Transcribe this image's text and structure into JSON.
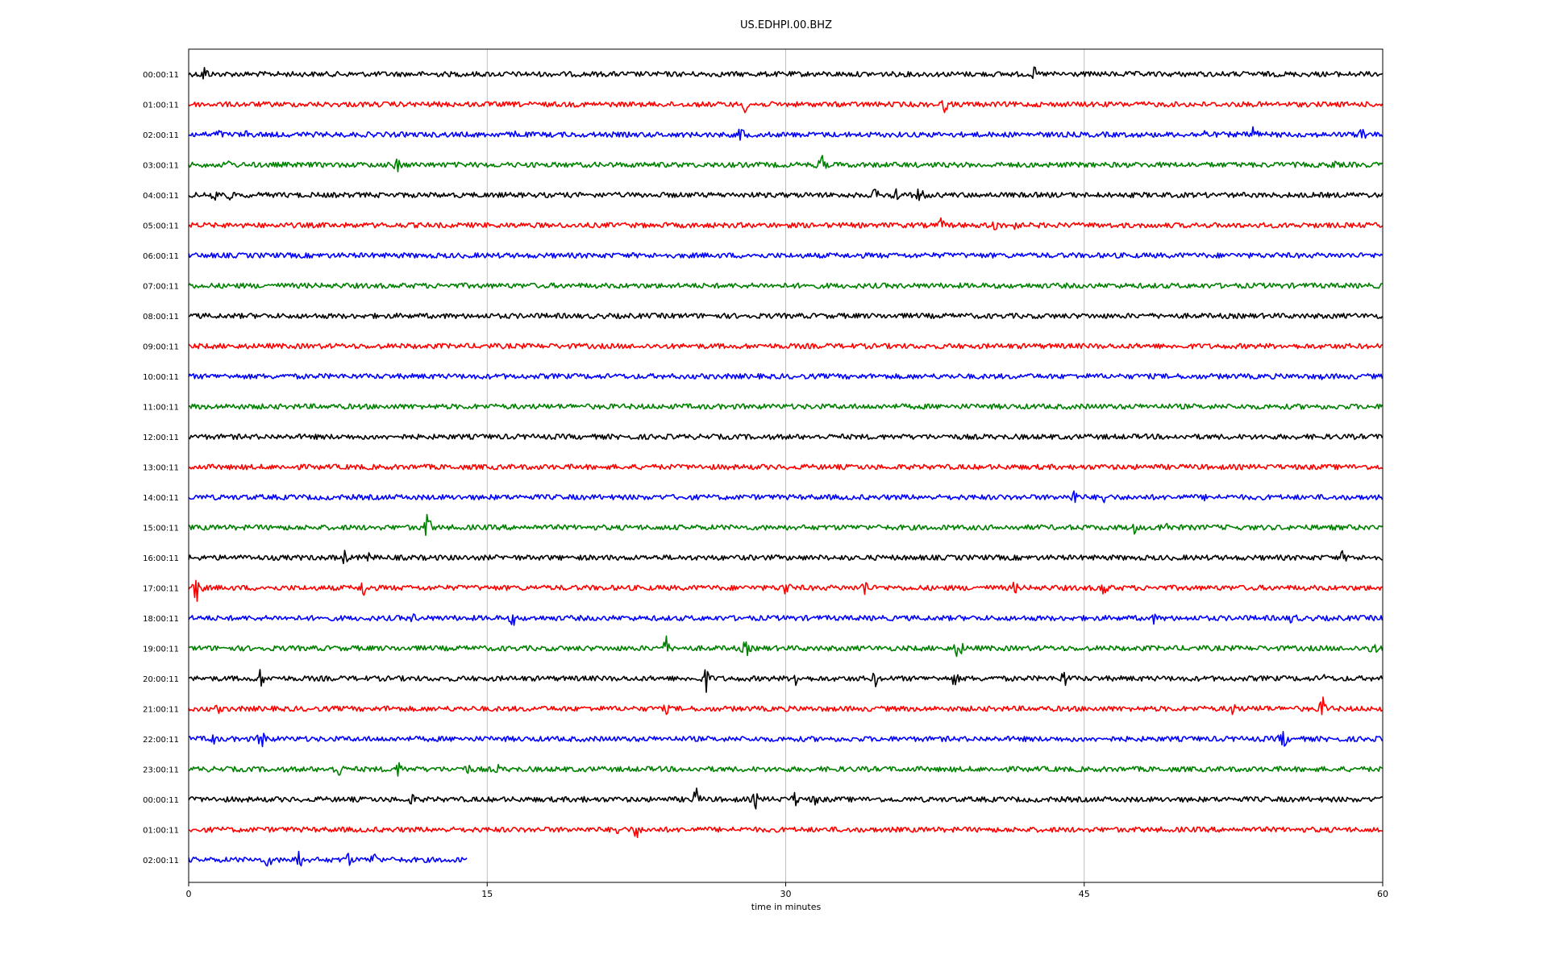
{
  "chart_data": {
    "type": "line",
    "title": "US.EDHPI.00.BHZ",
    "xlabel": "time in minutes",
    "xlim": [
      0,
      60
    ],
    "x_ticks": [
      0,
      15,
      30,
      45,
      60
    ],
    "x_tick_labels": [
      "0",
      "15",
      "30",
      "45",
      "60"
    ],
    "grid": "vertical lines at 15, 30, 45 minutes",
    "color_cycle": [
      "#000000",
      "#ff0000",
      "#0000ff",
      "#008000"
    ],
    "rows": [
      {
        "label": "00:00:11",
        "color": "#000000",
        "end": 60,
        "events": [
          [
            0.8,
            14
          ],
          [
            42.5,
            10
          ]
        ]
      },
      {
        "label": "01:00:11",
        "color": "#ff0000",
        "end": 60,
        "events": [
          [
            28.0,
            13
          ],
          [
            38.0,
            12
          ]
        ]
      },
      {
        "label": "02:00:11",
        "color": "#0000ff",
        "end": 60,
        "events": [
          [
            1.5,
            10
          ],
          [
            3.0,
            10
          ],
          [
            16.5,
            8
          ],
          [
            27.8,
            14
          ],
          [
            51.0,
            10
          ],
          [
            53.5,
            16
          ],
          [
            59.0,
            14
          ]
        ]
      },
      {
        "label": "03:00:11",
        "color": "#008000",
        "end": 60,
        "events": [
          [
            2.0,
            8
          ],
          [
            10.5,
            12
          ],
          [
            31.8,
            16
          ],
          [
            57.5,
            8
          ]
        ]
      },
      {
        "label": "04:00:11",
        "color": "#000000",
        "end": 60,
        "events": [
          [
            1.3,
            14
          ],
          [
            2.0,
            10
          ],
          [
            34.5,
            10
          ],
          [
            35.5,
            14
          ],
          [
            36.8,
            16
          ]
        ]
      },
      {
        "label": "05:00:11",
        "color": "#ff0000",
        "end": 60,
        "events": [
          [
            37.8,
            10
          ],
          [
            40.5,
            12
          ],
          [
            41.5,
            10
          ]
        ]
      },
      {
        "label": "06:00:11",
        "color": "#0000ff",
        "end": 60,
        "events": []
      },
      {
        "label": "07:00:11",
        "color": "#008000",
        "end": 60,
        "events": []
      },
      {
        "label": "08:00:11",
        "color": "#000000",
        "end": 60,
        "events": []
      },
      {
        "label": "09:00:11",
        "color": "#ff0000",
        "end": 60,
        "events": []
      },
      {
        "label": "10:00:11",
        "color": "#0000ff",
        "end": 60,
        "events": [
          [
            57.0,
            6
          ]
        ]
      },
      {
        "label": "11:00:11",
        "color": "#008000",
        "end": 60,
        "events": [
          [
            2.3,
            6
          ]
        ]
      },
      {
        "label": "12:00:11",
        "color": "#000000",
        "end": 60,
        "events": []
      },
      {
        "label": "13:00:11",
        "color": "#ff0000",
        "end": 60,
        "events": []
      },
      {
        "label": "14:00:11",
        "color": "#0000ff",
        "end": 60,
        "events": [
          [
            44.5,
            12
          ],
          [
            46.0,
            10
          ],
          [
            51.0,
            6
          ]
        ]
      },
      {
        "label": "15:00:11",
        "color": "#008000",
        "end": 60,
        "events": [
          [
            12.0,
            20
          ],
          [
            47.5,
            10
          ],
          [
            49.0,
            16
          ]
        ]
      },
      {
        "label": "16:00:11",
        "color": "#000000",
        "end": 60,
        "events": [
          [
            2.0,
            8
          ],
          [
            7.8,
            12
          ],
          [
            9.0,
            10
          ],
          [
            58.0,
            10
          ]
        ]
      },
      {
        "label": "17:00:11",
        "color": "#ff0000",
        "end": 60,
        "events": [
          [
            0.4,
            22
          ],
          [
            8.8,
            14
          ],
          [
            30.0,
            14
          ],
          [
            34.0,
            14
          ],
          [
            41.5,
            10
          ],
          [
            46.0,
            14
          ]
        ]
      },
      {
        "label": "18:00:11",
        "color": "#0000ff",
        "end": 60,
        "events": [
          [
            11.3,
            8
          ],
          [
            16.3,
            12
          ],
          [
            48.5,
            8
          ],
          [
            55.5,
            12
          ]
        ]
      },
      {
        "label": "19:00:11",
        "color": "#008000",
        "end": 60,
        "events": [
          [
            24.0,
            16
          ],
          [
            28.0,
            14
          ],
          [
            38.7,
            18
          ],
          [
            59.5,
            14
          ]
        ]
      },
      {
        "label": "20:00:11",
        "color": "#000000",
        "end": 60,
        "events": [
          [
            3.6,
            14
          ],
          [
            26.0,
            18
          ],
          [
            30.5,
            12
          ],
          [
            34.5,
            12
          ],
          [
            38.5,
            12
          ],
          [
            44.0,
            14
          ],
          [
            57.0,
            8
          ]
        ]
      },
      {
        "label": "21:00:11",
        "color": "#ff0000",
        "end": 60,
        "events": [
          [
            1.5,
            8
          ],
          [
            10.0,
            6
          ],
          [
            24.0,
            8
          ],
          [
            52.5,
            12
          ],
          [
            54.0,
            10
          ],
          [
            57.0,
            16
          ]
        ]
      },
      {
        "label": "22:00:11",
        "color": "#0000ff",
        "end": 60,
        "events": [
          [
            1.2,
            10
          ],
          [
            3.7,
            16
          ],
          [
            55.0,
            16
          ]
        ]
      },
      {
        "label": "23:00:11",
        "color": "#008000",
        "end": 60,
        "events": [
          [
            7.5,
            16
          ],
          [
            10.6,
            14
          ],
          [
            14.0,
            10
          ],
          [
            15.5,
            8
          ]
        ]
      },
      {
        "label": "00:00:11",
        "color": "#000000",
        "end": 60,
        "events": [
          [
            11.2,
            10
          ],
          [
            19.7,
            10
          ],
          [
            25.5,
            16
          ],
          [
            28.5,
            12
          ],
          [
            30.5,
            12
          ],
          [
            31.5,
            10
          ]
        ]
      },
      {
        "label": "01:00:11",
        "color": "#ff0000",
        "end": 60,
        "events": [
          [
            21.5,
            10
          ],
          [
            22.5,
            14
          ]
        ]
      },
      {
        "label": "02:00:11",
        "color": "#0000ff",
        "end": 14,
        "events": [
          [
            4.0,
            12
          ],
          [
            5.5,
            16
          ],
          [
            8.0,
            12
          ],
          [
            9.3,
            12
          ]
        ]
      }
    ]
  }
}
